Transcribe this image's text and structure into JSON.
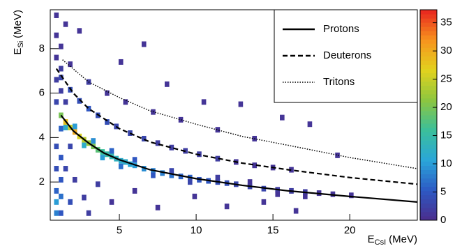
{
  "chart_data": {
    "type": "heatmap",
    "xlabel": {
      "main": "E",
      "sub": "CsI",
      "unit": "(MeV)"
    },
    "ylabel": {
      "main": "E",
      "sub": "Si",
      "unit": "(MeV)"
    },
    "xlim": [
      0.5,
      24.4
    ],
    "ylim": [
      0.28,
      9.75
    ],
    "zlim": [
      0,
      37.3
    ],
    "xticks": [
      5,
      10,
      15,
      20
    ],
    "yticks": [
      2,
      4,
      6,
      8
    ],
    "zticks": [
      0,
      5,
      10,
      15,
      20,
      25,
      30,
      35
    ],
    "colorscale": [
      "#4b2d8c",
      "#2d59c4",
      "#2aa6d9",
      "#3bbf9b",
      "#8dc63f",
      "#e2d21e",
      "#f7931e",
      "#e8241f"
    ],
    "cell_size": [
      0.3,
      0.25
    ],
    "cells": {
      "x": [
        1.2,
        1.5,
        1.8,
        2.1,
        2.4,
        2.7,
        3.0,
        3.3,
        3.6,
        3.9,
        4.2,
        4.5,
        4.8,
        5.1,
        5.4,
        5.7,
        6.0,
        6.6,
        7.2,
        7.8,
        8.4,
        9.0,
        9.6,
        10.2,
        10.8,
        11.4,
        12.0,
        12.6,
        13.5,
        14.4,
        15.3,
        16.2,
        17.1,
        18.0,
        18.9,
        1.5,
        2.1,
        2.7,
        3.3,
        3.9,
        4.5,
        5.1,
        6.0,
        7.2,
        8.4,
        9.6,
        11.4,
        13.5,
        15.3,
        17.1,
        0.9,
        0.9,
        0.9,
        1.2,
        1.2,
        1.2,
        0.9,
        1.2,
        0.9,
        1.2,
        0.9,
        1.2,
        0.9,
        1.2,
        0.9,
        1.2,
        0.9,
        1.5,
        0.9,
        1.5,
        1.8,
        1.8,
        2.1,
        1.5,
        1.2,
        1.8,
        2.4,
        3.0,
        3.6,
        4.2,
        4.8,
        5.7,
        6.6,
        7.5,
        8.4,
        9.3,
        10.2,
        11.4,
        12.6,
        13.8,
        15.0,
        16.2,
        1.8,
        3.0,
        4.2,
        5.4,
        7.2,
        9.0,
        11.4,
        13.8,
        3.0,
        4.5,
        6.0,
        7.5,
        9.9,
        12.0,
        14.4,
        16.5,
        5.1,
        8.1,
        10.5,
        12.9,
        15.6,
        17.4,
        19.2,
        2.4,
        6.6,
        3.6,
        2.7,
        20.1
      ],
      "y": [
        5.0,
        4.7,
        4.45,
        4.25,
        4.05,
        3.9,
        3.75,
        3.6,
        3.45,
        3.35,
        3.25,
        3.15,
        3.05,
        2.95,
        2.9,
        2.8,
        2.75,
        2.6,
        2.5,
        2.4,
        2.3,
        2.25,
        2.2,
        2.1,
        2.05,
        2.0,
        1.95,
        1.9,
        1.8,
        1.7,
        1.65,
        1.6,
        1.55,
        1.5,
        1.45,
        4.45,
        4.5,
        3.65,
        3.85,
        3.1,
        3.4,
        2.7,
        3.0,
        2.3,
        2.5,
        2.0,
        2.2,
        2.0,
        1.45,
        1.35,
        0.6,
        1.1,
        1.6,
        0.6,
        1.35,
        2.1,
        2.6,
        3.1,
        3.6,
        4.4,
        5.6,
        6.1,
        6.6,
        7.1,
        7.6,
        8.1,
        8.6,
        9.1,
        9.5,
        2.6,
        1.1,
        3.6,
        2.1,
        5.6,
        6.7,
        6.15,
        5.65,
        5.3,
        5.0,
        4.7,
        4.5,
        4.2,
        3.95,
        3.75,
        3.55,
        3.4,
        3.25,
        3.05,
        2.9,
        2.75,
        2.65,
        2.55,
        7.3,
        6.5,
        6.0,
        5.6,
        5.15,
        4.8,
        4.35,
        3.95,
        0.6,
        1.1,
        1.6,
        0.85,
        1.35,
        0.9,
        1.1,
        0.7,
        7.4,
        6.4,
        5.6,
        5.5,
        4.9,
        4.6,
        3.2,
        8.8,
        8.2,
        1.9,
        1.3,
        1.4
      ],
      "counts": [
        20,
        28,
        25,
        30,
        26,
        24,
        22,
        20,
        18,
        16,
        15,
        14,
        13,
        12,
        12,
        11,
        10,
        9,
        8,
        8,
        7,
        6,
        6,
        5,
        5,
        4,
        4,
        3,
        3,
        3,
        2,
        2,
        2,
        1,
        1,
        12,
        10,
        12,
        9,
        10,
        6,
        7,
        5,
        5,
        3,
        3,
        2,
        1,
        1,
        1,
        8,
        10,
        6,
        5,
        7,
        5,
        4,
        5,
        4,
        6,
        3,
        2,
        2,
        2,
        1,
        1,
        1,
        1,
        1,
        3,
        4,
        3,
        2,
        2,
        3,
        4,
        4,
        5,
        4,
        4,
        3,
        3,
        3,
        2,
        2,
        2,
        2,
        2,
        1,
        1,
        1,
        1,
        1,
        2,
        1,
        1,
        1,
        1,
        1,
        1,
        2,
        1,
        1,
        1,
        1,
        1,
        1,
        1,
        1,
        1,
        1,
        1,
        1,
        1,
        1,
        1,
        1,
        2,
        2,
        1
      ]
    },
    "series": [
      {
        "name": "Protons",
        "color": "#000000",
        "dash": "solid",
        "x": [
          1.2,
          2,
          3,
          4,
          5,
          7,
          10,
          13,
          16,
          20,
          24.4
        ],
        "values": [
          5.0,
          4.3,
          3.75,
          3.3,
          3.0,
          2.55,
          2.15,
          1.85,
          1.6,
          1.35,
          1.1
        ]
      },
      {
        "name": "Deuterons",
        "color": "#000000",
        "dash": "dashed",
        "x": [
          0.9,
          2,
          3,
          5,
          7,
          10,
          13,
          16,
          20,
          24.4
        ],
        "values": [
          7.1,
          6.0,
          5.3,
          4.4,
          3.8,
          3.25,
          2.85,
          2.55,
          2.2,
          1.9
        ]
      },
      {
        "name": "Tritons",
        "color": "#000000",
        "dash": "dotted",
        "x": [
          1.3,
          3,
          5,
          7,
          10,
          13,
          16,
          20,
          24.4
        ],
        "values": [
          7.5,
          6.5,
          5.8,
          5.2,
          4.6,
          4.05,
          3.65,
          3.1,
          2.6
        ]
      }
    ],
    "legend": "upper right"
  }
}
